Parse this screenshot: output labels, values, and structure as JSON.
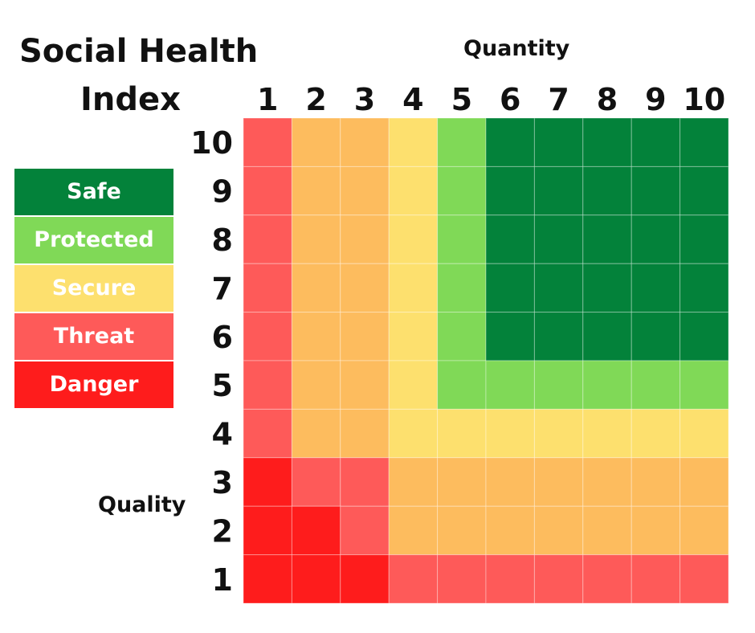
{
  "title_line1": "Social Health",
  "title_line2": "Index",
  "chart_data": {
    "type": "heatmap",
    "title": "Social Health Index",
    "xlabel": "Quantity",
    "ylabel": "Quality",
    "x_categories": [
      "1",
      "2",
      "3",
      "4",
      "5",
      "6",
      "7",
      "8",
      "9",
      "10"
    ],
    "y_categories": [
      "10",
      "9",
      "8",
      "7",
      "6",
      "5",
      "4",
      "3",
      "2",
      "1"
    ],
    "levels": [
      {
        "name": "Safe",
        "color": "#03823a"
      },
      {
        "name": "Protected",
        "color": "#80d957"
      },
      {
        "name": "Secure",
        "color": "#fde06e"
      },
      {
        "name": "Threat",
        "color": "#fe5a59"
      },
      {
        "name": "Danger",
        "color": "#fe1c1c"
      }
    ],
    "cell_colors": {
      "Danger": "#fe1c1c",
      "Threat": "#fe5a59",
      "Caution": "#fdbc5e",
      "Secure": "#fde06e",
      "Protected": "#80d957",
      "Safe": "#03823a"
    },
    "grid": [
      [
        "Threat",
        "Caution",
        "Caution",
        "Secure",
        "Protected",
        "Safe",
        "Safe",
        "Safe",
        "Safe",
        "Safe"
      ],
      [
        "Threat",
        "Caution",
        "Caution",
        "Secure",
        "Protected",
        "Safe",
        "Safe",
        "Safe",
        "Safe",
        "Safe"
      ],
      [
        "Threat",
        "Caution",
        "Caution",
        "Secure",
        "Protected",
        "Safe",
        "Safe",
        "Safe",
        "Safe",
        "Safe"
      ],
      [
        "Threat",
        "Caution",
        "Caution",
        "Secure",
        "Protected",
        "Safe",
        "Safe",
        "Safe",
        "Safe",
        "Safe"
      ],
      [
        "Threat",
        "Caution",
        "Caution",
        "Secure",
        "Protected",
        "Safe",
        "Safe",
        "Safe",
        "Safe",
        "Safe"
      ],
      [
        "Threat",
        "Caution",
        "Caution",
        "Secure",
        "Protected",
        "Protected",
        "Protected",
        "Protected",
        "Protected",
        "Protected"
      ],
      [
        "Threat",
        "Caution",
        "Caution",
        "Secure",
        "Secure",
        "Secure",
        "Secure",
        "Secure",
        "Secure",
        "Secure"
      ],
      [
        "Danger",
        "Threat",
        "Threat",
        "Caution",
        "Caution",
        "Caution",
        "Caution",
        "Caution",
        "Caution",
        "Caution"
      ],
      [
        "Danger",
        "Danger",
        "Threat",
        "Caution",
        "Caution",
        "Caution",
        "Caution",
        "Caution",
        "Caution",
        "Caution"
      ],
      [
        "Danger",
        "Danger",
        "Danger",
        "Threat",
        "Threat",
        "Threat",
        "Threat",
        "Threat",
        "Threat",
        "Threat"
      ]
    ],
    "legend_position": "left"
  }
}
